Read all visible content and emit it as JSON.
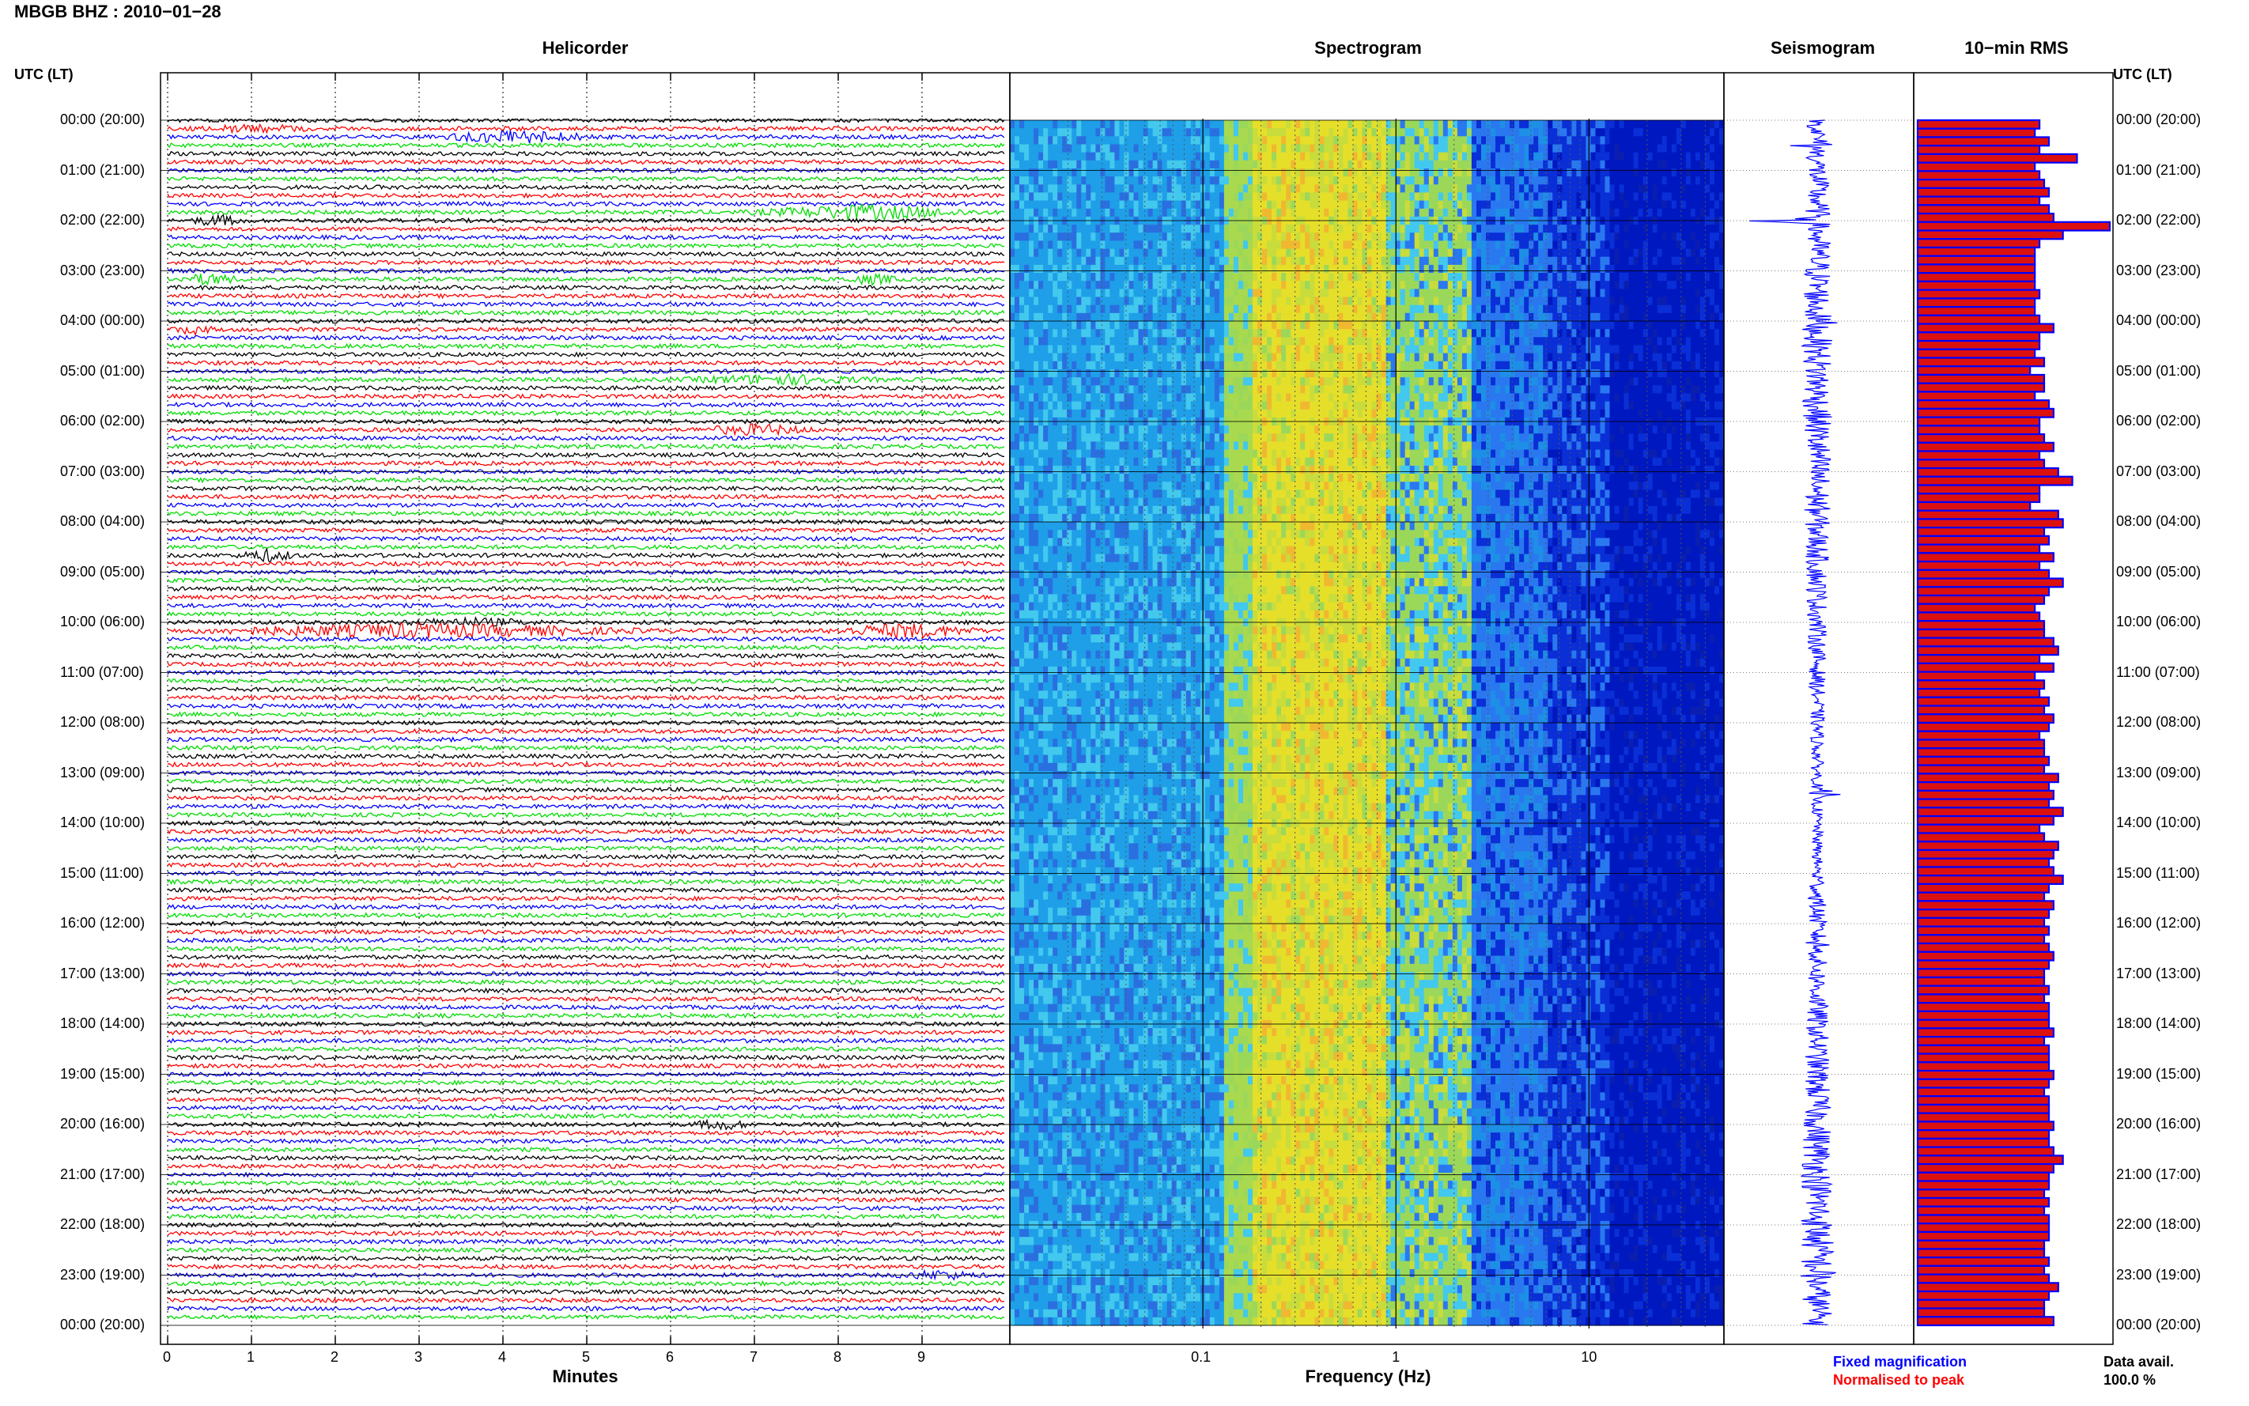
{
  "title": "MBGB BHZ : 2010−01−28",
  "panels": {
    "helicorder": "Helicorder",
    "spectrogram": "Spectrogram",
    "seismogram": "Seismogram",
    "rms": "10−min RMS"
  },
  "axis": {
    "left_header": "UTC (LT)",
    "right_header": "UTC (LT)",
    "minutes_label": "Minutes",
    "frequency_label": "Frequency (Hz)"
  },
  "legend": {
    "fixed": "Fixed magnification",
    "fixed_color": "#0000ff",
    "normalised": "Normalised to peak",
    "normalised_color": "#ff0000",
    "data_avail_label": "Data avail.",
    "data_avail_value": "100.0 %"
  },
  "colors": {
    "trace_cycle": [
      "#000000",
      "#ff0000",
      "#0000ff",
      "#00dd00"
    ],
    "rms_fill": "#dd1010",
    "rms_edge": "#0000ff",
    "seismo": "#0000ff"
  },
  "chart_data": [
    {
      "type": "line",
      "name": "helicorder",
      "title": "Helicorder",
      "xlabel": "Minutes",
      "x_ticks": [
        "0",
        "1",
        "2",
        "3",
        "4",
        "5",
        "6",
        "7",
        "8",
        "9"
      ],
      "xlim": [
        0,
        10
      ],
      "y_ticks_left": [
        "00:00 (20:00)",
        "01:00 (21:00)",
        "02:00 (22:00)",
        "03:00 (23:00)",
        "04:00 (00:00)",
        "05:00 (01:00)",
        "06:00 (02:00)",
        "07:00 (03:00)",
        "08:00 (04:00)",
        "09:00 (05:00)",
        "10:00 (06:00)",
        "11:00 (07:00)",
        "12:00 (08:00)",
        "13:00 (09:00)",
        "14:00 (10:00)",
        "15:00 (11:00)",
        "16:00 (12:00)",
        "17:00 (13:00)",
        "18:00 (14:00)",
        "19:00 (15:00)",
        "20:00 (16:00)",
        "21:00 (17:00)",
        "22:00 (18:00)",
        "23:00 (19:00)",
        "00:00 (20:00)"
      ],
      "lines_per_hour": 6,
      "events": [
        {
          "line": 1,
          "start_min": 0.2,
          "end_min": 1.8,
          "amp": 1.6
        },
        {
          "line": 2,
          "start_min": 3.2,
          "end_min": 5.2,
          "amp": 2.8
        },
        {
          "line": 12,
          "start_min": 0.2,
          "end_min": 1.0,
          "amp": 2.2
        },
        {
          "line": 11,
          "start_min": 6.8,
          "end_min": 9.8,
          "amp": 3.2
        },
        {
          "line": 19,
          "start_min": 0.1,
          "end_min": 0.9,
          "amp": 2.5
        },
        {
          "line": 19,
          "start_min": 8.0,
          "end_min": 8.8,
          "amp": 2.0
        },
        {
          "line": 25,
          "start_min": 0.0,
          "end_min": 0.6,
          "amp": 1.8
        },
        {
          "line": 31,
          "start_min": 6.0,
          "end_min": 8.6,
          "amp": 2.0
        },
        {
          "line": 37,
          "start_min": 6.2,
          "end_min": 7.8,
          "amp": 2.2
        },
        {
          "line": 52,
          "start_min": 0.8,
          "end_min": 1.6,
          "amp": 2.6
        },
        {
          "line": 60,
          "start_min": 2.6,
          "end_min": 4.6,
          "amp": 1.5
        },
        {
          "line": 61,
          "start_min": 7.8,
          "end_min": 9.8,
          "amp": 3.2
        },
        {
          "line": 61,
          "start_min": 0.0,
          "end_min": 6.0,
          "amp": 3.0
        },
        {
          "line": 120,
          "start_min": 6.2,
          "end_min": 7.0,
          "amp": 2.2
        },
        {
          "line": 138,
          "start_min": 8.6,
          "end_min": 9.8,
          "amp": 1.8
        }
      ]
    },
    {
      "type": "heatmap",
      "name": "spectrogram",
      "title": "Spectrogram",
      "xlabel": "Frequency (Hz)",
      "x_scale": "log",
      "xlim": [
        0.01,
        50
      ],
      "x_ticks": [
        "0.1",
        "1",
        "10"
      ],
      "colormap": [
        "#1e9fe8",
        "#43c8ee",
        "#e6df2a",
        "#9bd85a",
        "#2a78f0",
        "#0a2fd6",
        "#0018c0"
      ],
      "band_peak_hz": [
        0.2,
        0.6
      ]
    },
    {
      "type": "line",
      "name": "seismogram",
      "title": "Seismogram",
      "spikes": [
        {
          "hour": 0.5,
          "amp": 0.35
        },
        {
          "hour": 2.0,
          "amp": 1.0
        },
        {
          "hour": 4.0,
          "amp": 0.25
        },
        {
          "hour": 7.3,
          "amp": 0.3
        },
        {
          "hour": 13.4,
          "amp": 0.5
        },
        {
          "hour": 16.4,
          "amp": 0.15
        },
        {
          "hour": 23.0,
          "amp": 0.2
        }
      ]
    },
    {
      "type": "bar",
      "name": "rms",
      "title": "10−min RMS",
      "orientation": "horizontal",
      "values": [
        1.3,
        1.25,
        1.4,
        1.3,
        1.7,
        1.25,
        1.3,
        1.35,
        1.4,
        1.3,
        1.4,
        1.45,
        2.05,
        1.55,
        1.3,
        1.25,
        1.25,
        1.25,
        1.25,
        1.25,
        1.3,
        1.25,
        1.25,
        1.3,
        1.45,
        1.3,
        1.3,
        1.25,
        1.35,
        1.2,
        1.35,
        1.35,
        1.25,
        1.4,
        1.45,
        1.3,
        1.3,
        1.35,
        1.45,
        1.3,
        1.35,
        1.5,
        1.65,
        1.3,
        1.3,
        1.2,
        1.5,
        1.55,
        1.35,
        1.4,
        1.3,
        1.45,
        1.3,
        1.4,
        1.55,
        1.4,
        1.35,
        1.25,
        1.3,
        1.35,
        1.35,
        1.45,
        1.5,
        1.3,
        1.45,
        1.25,
        1.35,
        1.3,
        1.4,
        1.35,
        1.45,
        1.4,
        1.3,
        1.35,
        1.35,
        1.4,
        1.35,
        1.5,
        1.4,
        1.45,
        1.4,
        1.55,
        1.45,
        1.3,
        1.35,
        1.5,
        1.45,
        1.4,
        1.45,
        1.55,
        1.4,
        1.35,
        1.45,
        1.4,
        1.35,
        1.4,
        1.35,
        1.4,
        1.45,
        1.4,
        1.35,
        1.35,
        1.4,
        1.35,
        1.4,
        1.4,
        1.4,
        1.45,
        1.35,
        1.4,
        1.4,
        1.4,
        1.45,
        1.4,
        1.35,
        1.4,
        1.4,
        1.4,
        1.45,
        1.4,
        1.4,
        1.45,
        1.55,
        1.45,
        1.4,
        1.4,
        1.35,
        1.4,
        1.35,
        1.4,
        1.4,
        1.4,
        1.35,
        1.35,
        1.4,
        1.35,
        1.4,
        1.5,
        1.4,
        1.35,
        1.35,
        1.45
      ]
    }
  ]
}
